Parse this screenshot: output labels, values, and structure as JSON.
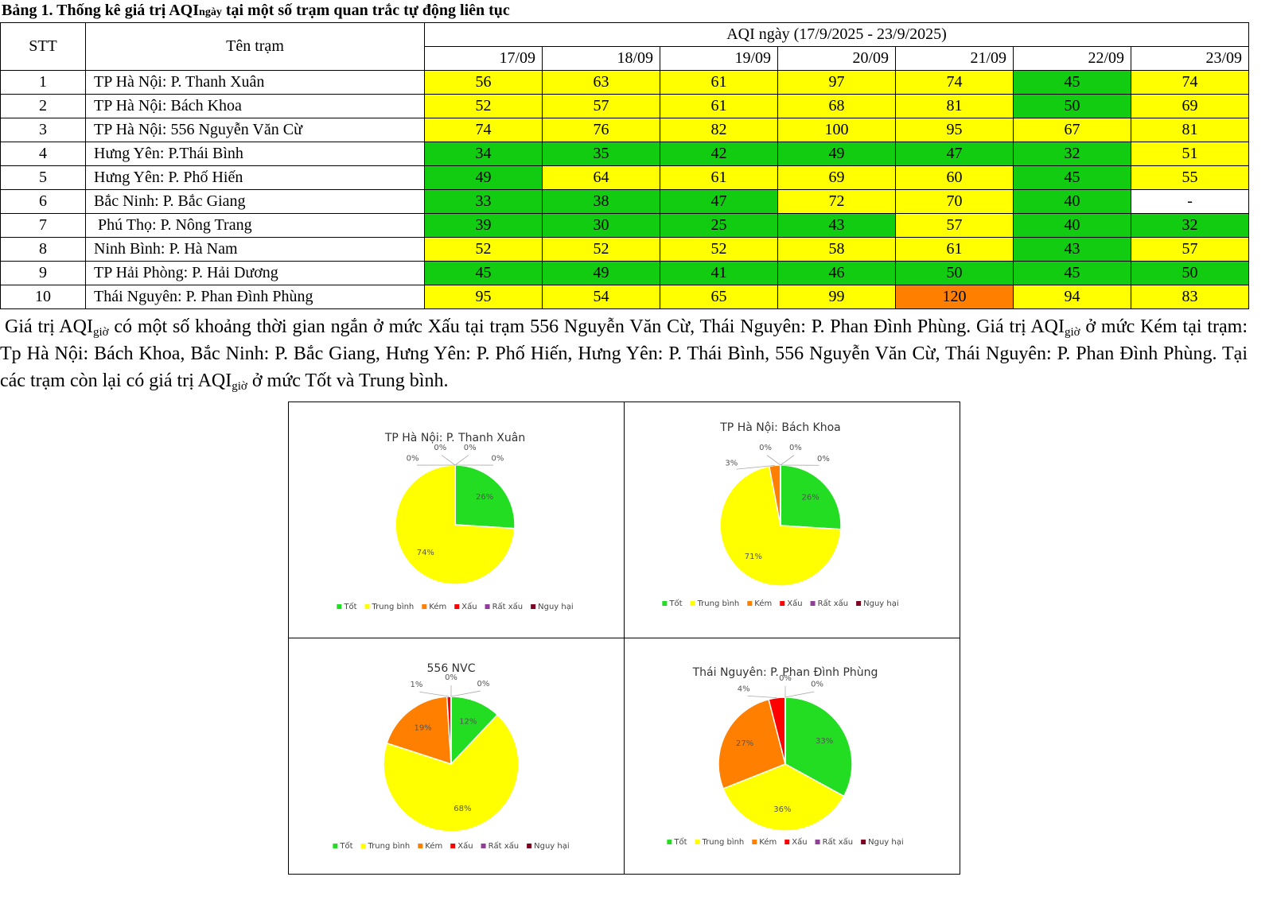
{
  "caption": [
    "Bảng 1. Thống kê giá trị AQI",
    "ngày",
    " tại một số trạm quan trắc tự động liên tục"
  ],
  "table": {
    "header": {
      "stt": "STT",
      "name": "Tên trạm",
      "group": "AQI ngày (17/9/2025 - 23/9/2025)",
      "dates": [
        "17/09",
        "18/09",
        "19/09",
        "20/09",
        "21/09",
        "22/09",
        "23/09"
      ]
    },
    "rows": [
      {
        "stt": "1",
        "name": "TP Hà Nội: P. Thanh Xuân",
        "values": [
          56,
          63,
          61,
          97,
          74,
          45,
          74
        ],
        "colors": [
          "#ffff00",
          "#ffff00",
          "#ffff00",
          "#ffff00",
          "#ffff00",
          "#11cc11",
          "#ffff00"
        ]
      },
      {
        "stt": "2",
        "name": "TP Hà Nội: Bách Khoa",
        "values": [
          52,
          57,
          61,
          68,
          81,
          50,
          69
        ],
        "colors": [
          "#ffff00",
          "#ffff00",
          "#ffff00",
          "#ffff00",
          "#ffff00",
          "#11cc11",
          "#ffff00"
        ]
      },
      {
        "stt": "3",
        "name": "TP Hà Nội: 556 Nguyễn Văn Cừ",
        "values": [
          74,
          76,
          82,
          100,
          95,
          67,
          81
        ],
        "colors": [
          "#ffff00",
          "#ffff00",
          "#ffff00",
          "#ffff00",
          "#ffff00",
          "#ffff00",
          "#ffff00"
        ]
      },
      {
        "stt": "4",
        "name": "Hưng Yên: P.Thái Bình",
        "values": [
          34,
          35,
          42,
          49,
          47,
          32,
          51
        ],
        "colors": [
          "#11cc11",
          "#11cc11",
          "#11cc11",
          "#11cc11",
          "#11cc11",
          "#11cc11",
          "#ffff00"
        ]
      },
      {
        "stt": "5",
        "name": "Hưng Yên: P. Phố Hiến",
        "values": [
          49,
          64,
          61,
          69,
          60,
          45,
          55
        ],
        "colors": [
          "#11cc11",
          "#ffff00",
          "#ffff00",
          "#ffff00",
          "#ffff00",
          "#11cc11",
          "#ffff00"
        ]
      },
      {
        "stt": "6",
        "name": "Bắc Ninh: P. Bắc Giang",
        "values": [
          33,
          38,
          47,
          72,
          70,
          40,
          "-"
        ],
        "colors": [
          "#11cc11",
          "#11cc11",
          "#11cc11",
          "#ffff00",
          "#ffff00",
          "#11cc11",
          "#ffffff"
        ]
      },
      {
        "stt": "7",
        "name": " Phú Thọ: P. Nông Trang",
        "values": [
          39,
          30,
          25,
          43,
          57,
          40,
          32
        ],
        "colors": [
          "#11cc11",
          "#11cc11",
          "#11cc11",
          "#11cc11",
          "#ffff00",
          "#11cc11",
          "#11cc11"
        ]
      },
      {
        "stt": "8",
        "name": "Ninh Bình: P. Hà Nam",
        "values": [
          52,
          52,
          52,
          58,
          61,
          43,
          57
        ],
        "colors": [
          "#ffff00",
          "#ffff00",
          "#ffff00",
          "#ffff00",
          "#ffff00",
          "#11cc11",
          "#ffff00"
        ]
      },
      {
        "stt": "9",
        "name": "TP Hải Phòng: P. Hải Dương",
        "values": [
          45,
          49,
          41,
          46,
          50,
          45,
          50
        ],
        "colors": [
          "#11cc11",
          "#11cc11",
          "#11cc11",
          "#11cc11",
          "#11cc11",
          "#11cc11",
          "#11cc11"
        ]
      },
      {
        "stt": "10",
        "name": "Thái Nguyên: P. Phan Đình Phùng",
        "values": [
          95,
          54,
          65,
          99,
          120,
          94,
          83
        ],
        "colors": [
          "#ffff00",
          "#ffff00",
          "#ffff00",
          "#ffff00",
          "#ff7f00",
          "#ffff00",
          "#ffff00"
        ]
      }
    ]
  },
  "paragraph": [
    "Giá trị AQI",
    "giờ",
    " có một số khoảng thời gian ngắn ở mức Xấu tại trạm 556 Nguyễn Văn Cừ, Thái Nguyên: P. Phan Đình Phùng. Giá trị AQI",
    "giờ",
    " ở mức Kém tại trạm: Tp Hà Nội: Bách Khoa, Bắc Ninh: P. Bắc Giang, Hưng Yên: P. Phố Hiến, Hưng Yên: P. Thái Bình, 556 Nguyễn Văn Cừ, Thái Nguyên: P. Phan Đình Phùng. Tại các trạm còn lại có giá trị AQI",
    "giờ",
    " ở mức Tốt và Trung bình."
  ],
  "chart_data": [
    {
      "type": "pie",
      "title": "TP Hà Nội: P. Thanh Xuân",
      "categories": [
        "Tốt",
        "Trung bình",
        "Kém",
        "Xấu",
        "Rất xấu",
        "Nguy hại"
      ],
      "colors": [
        "#22dd22",
        "#ffff00",
        "#ff7f00",
        "#ff0000",
        "#8f3f97",
        "#7e0023"
      ],
      "values": [
        26,
        74,
        0,
        0,
        0,
        0
      ],
      "value_labels": [
        "26%",
        "74%",
        "0%",
        "0%",
        "0%",
        "0%"
      ]
    },
    {
      "type": "pie",
      "title": "TP Hà Nội: Bách Khoa",
      "categories": [
        "Tốt",
        "Trung bình",
        "Kém",
        "Xấu",
        "Rất xấu",
        "Nguy hại"
      ],
      "colors": [
        "#22dd22",
        "#ffff00",
        "#ff7f00",
        "#ff0000",
        "#8f3f97",
        "#7e0023"
      ],
      "values": [
        26,
        71,
        3,
        0,
        0,
        0
      ],
      "value_labels": [
        "26%",
        "71%",
        "3%",
        "0%",
        "0%",
        "0%"
      ]
    },
    {
      "type": "pie",
      "title": "556 NVC",
      "categories": [
        "Tốt",
        "Trung bình",
        "Kém",
        "Xấu",
        "Rất xấu",
        "Nguy hại"
      ],
      "colors": [
        "#22dd22",
        "#ffff00",
        "#ff7f00",
        "#ff0000",
        "#8f3f97",
        "#7e0023"
      ],
      "values": [
        12,
        68,
        19,
        1,
        0,
        0
      ],
      "value_labels": [
        "12%",
        "68%",
        "19%",
        "1%",
        "0%",
        "0%"
      ]
    },
    {
      "type": "pie",
      "title": "Thái Nguyên: P. Phan Đình Phùng",
      "categories": [
        "Tốt",
        "Trung bình",
        "Kém",
        "Xấu",
        "Rất xấu",
        "Nguy hại"
      ],
      "colors": [
        "#22dd22",
        "#ffff00",
        "#ff7f00",
        "#ff0000",
        "#8f3f97",
        "#7e0023"
      ],
      "values": [
        33,
        36,
        27,
        4,
        0,
        0
      ],
      "value_labels": [
        "33%",
        "36%",
        "27%",
        "4%",
        "0%",
        "0%"
      ]
    }
  ]
}
